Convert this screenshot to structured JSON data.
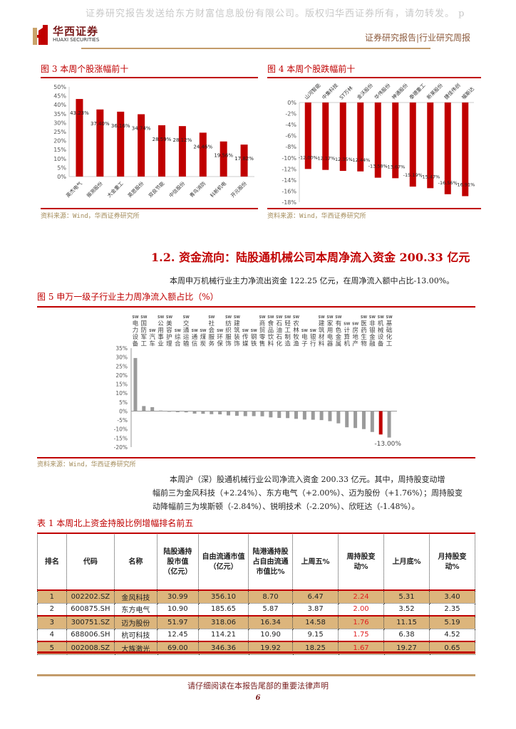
{
  "header": {
    "watermark": "证券研究报告发送给东方财富信息股份有限公司。版权归华西证券所有，请勿转发。 p",
    "logo_cn": "华西证券",
    "logo_en": "HUAXI SECURITIES",
    "report_type": "证券研究报告|行业研究周报"
  },
  "fig3": {
    "title": "图 3   本周个股涨幅前十",
    "source": "资料来源：Wind，华西证券研究所"
  },
  "fig4": {
    "title": "图 4   本周个股跌幅前十",
    "source": "资料来源：Wind，华西证券研究所"
  },
  "section": {
    "title": "1.2. 资金流向：陆股通机械公司本周净流入资金 200.33 亿元",
    "para1": "本周申万机械行业主力净流出资金 122.25 亿元，在周净流入额中占比-13.00%。"
  },
  "fig5": {
    "title": "图 5   申万一级子行业主力周净流入额占比（%）",
    "source": "资料来源：Wind，华西证券研究所",
    "highlight_label": "-13.00%"
  },
  "para2": {
    "line1": "本周沪（深）股通机械行业公司净流入资金 200.33 亿元。其中，周持股变动增",
    "line2": "幅前三为金风科技（+2.24%）、东方电气（+2.00%）、迈为股份（+1.76%）；周持股变",
    "line3": "动降幅前三为埃斯顿（-2.84%）、锐明技术（-2.20%）、欣旺达（-1.48%）。"
  },
  "table1": {
    "title": "表 1  本周北上资金持股比例增幅排名前五",
    "headers": [
      "排名",
      "代码",
      "名称",
      "陆股通持股市值（亿元）",
      "自由流通市值（亿元）",
      "陆港通持股占自由流通市值比%",
      "上周五%",
      "周持股变动%",
      "上月底%",
      "月持股变动%"
    ],
    "rows": [
      [
        "1",
        "002202.SZ",
        "金风科技",
        "30.99",
        "356.10",
        "8.70",
        "6.47",
        "2.24",
        "5.31",
        "3.40"
      ],
      [
        "2",
        "600875.SH",
        "东方电气",
        "10.90",
        "185.65",
        "5.87",
        "3.87",
        "2.00",
        "3.52",
        "2.35"
      ],
      [
        "3",
        "300751.SZ",
        "迈为股份",
        "51.97",
        "318.06",
        "16.34",
        "14.58",
        "1.76",
        "11.15",
        "5.19"
      ],
      [
        "4",
        "688006.SH",
        "杭可科技",
        "12.45",
        "114.21",
        "10.90",
        "9.15",
        "1.75",
        "6.38",
        "4.52"
      ],
      [
        "5",
        "002008.SZ",
        "大族激光",
        "69.00",
        "346.36",
        "19.92",
        "18.25",
        "1.67",
        "19.27",
        "0.65"
      ]
    ]
  },
  "footer": {
    "note": "请仔细阅读在本报告尾部的重要法律声明",
    "page": "6"
  },
  "colors": {
    "accent": "#c00000",
    "gold": "#c39b6a",
    "row_fill": "#dcb57c",
    "bar_gray": "#9a9a9a"
  },
  "chart_data": [
    {
      "type": "bar",
      "title": "本周个股涨幅前十",
      "categories": [
        "英杰电气",
        "振测股份",
        "大金重工",
        "英思股份",
        "双良节能",
        "中信股份",
        "青鸟消防",
        "科新机电",
        "开元股份"
      ],
      "values": [
        43.23,
        37.4,
        36.16,
        34.74,
        28.59,
        28.12,
        24.46,
        19.56,
        17.82
      ],
      "ylim": [
        0,
        50
      ],
      "yticks": [
        "0%",
        "5%",
        "10%",
        "15%",
        "20%",
        "25%",
        "30%",
        "35%",
        "40%",
        "45%",
        "50%"
      ],
      "xlabel": "",
      "ylabel": ""
    },
    {
      "type": "bar",
      "title": "本周个股跌幅前十",
      "categories": [
        "山河智能",
        "中集科技",
        "ST万林",
        "金沃股份",
        "华伟股份",
        "神通股份",
        "泰德重工",
        "新莱股份",
        "捷佳伟创",
        "福斯达"
      ],
      "values": [
        -12.0,
        -12.17,
        -12.35,
        -12.44,
        -13.58,
        -13.67,
        -15.19,
        -15.47,
        -16.56,
        -16.91
      ],
      "ylim": [
        -18,
        0
      ],
      "yticks": [
        "0%",
        "-2%",
        "-4%",
        "-6%",
        "-8%",
        "-10%",
        "-12%",
        "-14%",
        "-16%",
        "-18%"
      ],
      "xlabel": "",
      "ylabel": ""
    },
    {
      "type": "bar",
      "title": "申万一级子行业主力周净流入额占比（%）",
      "categories": [
        "SW电力设备",
        "SW国防军工",
        "SW汽车",
        "SW公用事业",
        "SW美容护理",
        "SW综合",
        "SW交通运输",
        "SW通信",
        "SW煤炭",
        "SW社会服务",
        "SW环保",
        "SW纺织服饰",
        "SW建筑装饰",
        "SW传媒",
        "SW钢铁",
        "SW商贸零售",
        "SW食品饮料",
        "SW石油石化",
        "SW轻工制造",
        "SW农林牧渔",
        "SW电子",
        "SW银行",
        "SW建筑材料",
        "SW家用电器",
        "SW有色金属",
        "SW计算机",
        "SW房地产",
        "SW医药生物",
        "SW非银金融",
        "SW机械设备",
        "SW基础化工"
      ],
      "values": [
        29.5,
        2.8,
        2.2,
        0.3,
        -0.4,
        -0.6,
        -0.7,
        -1.4,
        -1.5,
        -1.7,
        -1.8,
        -2.4,
        -2.6,
        -2.8,
        -2.8,
        -2.9,
        -3.5,
        -3.8,
        -3.9,
        -4.3,
        -4.7,
        -4.8,
        -5.0,
        -5.6,
        -6.8,
        -9.0,
        -9.4,
        -10.0,
        -11.6,
        -13.0,
        -14.7
      ],
      "highlight_index": 29,
      "ylim": [
        -20,
        35
      ],
      "yticks": [
        "35%",
        "30%",
        "25%",
        "20%",
        "15%",
        "10%",
        "5%",
        "0%",
        "-5%",
        "-10%",
        "-15%",
        "-20%"
      ],
      "annotations": [
        "-13.00%"
      ]
    }
  ]
}
